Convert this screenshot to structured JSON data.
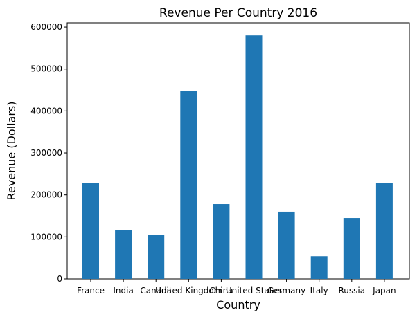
{
  "chart_data": {
    "type": "bar",
    "title": "Revenue Per Country 2016",
    "xlabel": "Country",
    "ylabel": "Revenue (Dollars)",
    "categories": [
      "France",
      "India",
      "Canada",
      "United Kingdom",
      "China",
      "United States",
      "Germany",
      "Italy",
      "Russia",
      "Japan"
    ],
    "values": [
      229000,
      117000,
      105000,
      447000,
      178000,
      580000,
      160000,
      54000,
      145000,
      229000
    ],
    "ylim": [
      0,
      610000
    ],
    "yticks": [
      0,
      100000,
      200000,
      300000,
      400000,
      500000,
      600000
    ],
    "ytick_labels": [
      "0",
      "100000",
      "200000",
      "300000",
      "400000",
      "500000",
      "600000"
    ],
    "bar_color": "#1f77b4",
    "grid": false,
    "legend": "none"
  }
}
